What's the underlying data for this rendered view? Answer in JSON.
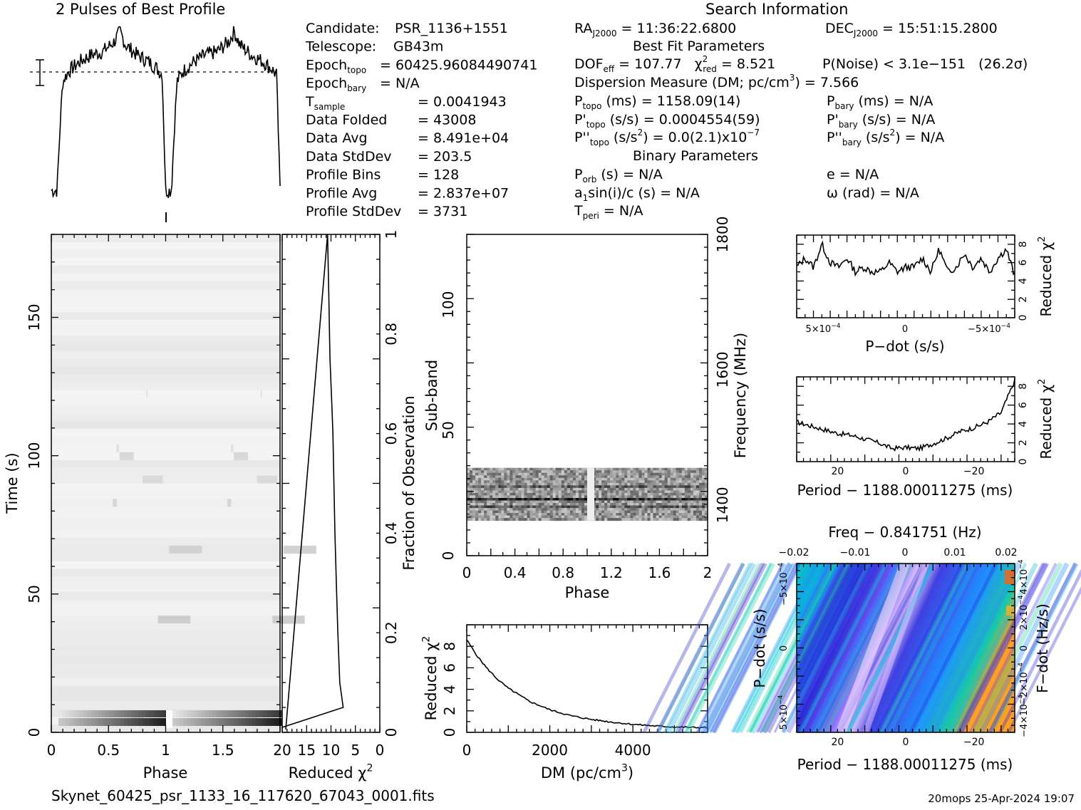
{
  "profile": {
    "title": "2 Pulses of Best Profile"
  },
  "info": {
    "search_title": "Search Information",
    "left": [
      {
        "label": "Candidate:",
        "sub": "",
        "value": "PSR_1136+1551"
      },
      {
        "label": "Telescope:",
        "sub": "",
        "value": "GB43m"
      },
      {
        "label": "Epoch",
        "sub": "topo",
        "value": "= 60425.96084490741"
      },
      {
        "label": "Epoch",
        "sub": "bary",
        "value": "= N/A"
      },
      {
        "label": "T",
        "sub": "sample",
        "value": "= 0.0041943"
      },
      {
        "label": "Data Folded",
        "sub": "",
        "value": "= 43008"
      },
      {
        "label": "Data Avg",
        "sub": "",
        "value": "= 8.491e+04"
      },
      {
        "label": "Data StdDev",
        "sub": "",
        "value": "= 203.5"
      },
      {
        "label": "Profile Bins",
        "sub": "",
        "value": "= 128"
      },
      {
        "label": "Profile Avg",
        "sub": "",
        "value": "= 2.837e+07"
      },
      {
        "label": "Profile StdDev",
        "sub": "",
        "value": "= 3731"
      }
    ],
    "ra": "RA",
    "ra_sub": "J2000",
    "ra_value": "= 11:36:22.6800",
    "dec": "DEC",
    "dec_sub": "J2000",
    "dec_value": "= 15:51:15.2800",
    "best_fit_title": "Best Fit Parameters",
    "dof": "DOF",
    "dof_sub": "eff",
    "dof_value": "= 107.77",
    "chi": "χ",
    "chi_sup": "2",
    "chi_sub": "red",
    "chi_value": "= 8.521",
    "pnoise": "P(Noise) < 3.1e−151",
    "sigma": "(26.2σ)",
    "dm_line": "Dispersion Measure (DM; pc/cm",
    "dm_sup": "3",
    "dm_value": ") = 7.566",
    "p_topo": "P",
    "p_topo_sub": "topo",
    "p_topo_value": "(ms) =  1158.09(14)",
    "p_bary": "P",
    "p_bary_sub": "bary",
    "p_bary_value": "(ms) = N/A",
    "pd_topo": "P'",
    "pd_topo_sub": "topo",
    "pd_topo_value": "(s/s) =  0.0004554(59)",
    "pd_bary": "P'",
    "pd_bary_sub": "bary",
    "pd_bary_value": "(s/s) = N/A",
    "pdd_topo": "P''",
    "pdd_topo_sub": "topo",
    "pdd_topo_value": "(s/s",
    "pdd_topo_sup": "2",
    "pdd_topo_value2": ") = 0.0(2.1)x10",
    "pdd_topo_exp": "−7",
    "pdd_bary": "P''",
    "pdd_bary_sub": "bary",
    "pdd_bary_value": "(s/s",
    "pdd_bary_sup": "2",
    "pdd_bary_value2": ") = N/A",
    "binary_title": "Binary Parameters",
    "porb": "P",
    "porb_sub": "orb",
    "porb_value": "(s) = N/A",
    "ecc": "e = N/A",
    "a1": "a",
    "a1_sub": "1",
    "a1_value": "sin(i)/c (s) = N/A",
    "omega": "ω (rad) = N/A",
    "tperi": "T",
    "tperi_sub": "peri",
    "tperi_value": "= N/A"
  },
  "footer": {
    "filename": "Skynet_60425_psr_1133_16_117620_67043_0001.fits",
    "stamp": "20mops 25-Apr-2024 19:07"
  },
  "colors": {
    "ink": "#000000",
    "heat_low": "#00c8c8",
    "heat_mid": "#2a2ad6",
    "heat_high": "#ffd0ff"
  },
  "chart_data": [
    {
      "id": "profile",
      "type": "line",
      "title": "2 Pulses of Best Profile",
      "x": [
        0.0,
        0.05,
        0.08,
        0.1,
        0.15,
        0.25,
        0.35,
        0.45,
        0.55,
        0.6,
        0.65,
        0.75,
        0.85,
        0.92,
        0.97,
        1.0,
        1.05,
        1.08,
        1.1,
        1.15,
        1.25,
        1.35,
        1.45,
        1.55,
        1.6,
        1.65,
        1.75,
        1.85,
        1.92,
        1.97,
        2.0
      ],
      "y": [
        0.02,
        0.02,
        0.45,
        0.68,
        0.74,
        0.8,
        0.84,
        0.86,
        0.92,
        0.98,
        0.9,
        0.84,
        0.8,
        0.76,
        0.72,
        0.02,
        0.02,
        0.45,
        0.68,
        0.74,
        0.8,
        0.84,
        0.86,
        0.92,
        0.98,
        0.9,
        0.84,
        0.8,
        0.76,
        0.72,
        0.02
      ]
    },
    {
      "id": "time_phase",
      "type": "heatmap",
      "xlabel": "Phase",
      "ylabel": "Time (s)",
      "xlim": [
        0,
        2
      ],
      "ylim": [
        0,
        180
      ],
      "xticks": [
        "0",
        "0.5",
        "1",
        "1.5"
      ],
      "yticks": [
        "0",
        "50",
        "100",
        "150"
      ]
    },
    {
      "id": "chi_vs_time",
      "type": "line",
      "xlabel": "Reduced χ",
      "xlabel_sup": "2",
      "ylabel": "Fraction of Observation",
      "xlim": [
        20,
        0
      ],
      "ylim": [
        0,
        1
      ],
      "xticks": [
        "20",
        "15",
        "10",
        "5",
        "0"
      ],
      "yticks": [
        "0",
        "0.2",
        "0.4",
        "0.6",
        "0.8",
        "1"
      ],
      "x": [
        20,
        7.5,
        8.2,
        8.6,
        8.9,
        9.2,
        9.4,
        9.6,
        9.8,
        10.0,
        10.2,
        10.3,
        10.4,
        10.5,
        10.6,
        10.7
      ],
      "y": [
        0.01,
        0.05,
        0.1,
        0.2,
        0.3,
        0.4,
        0.5,
        0.6,
        0.65,
        0.7,
        0.75,
        0.8,
        0.85,
        0.9,
        0.95,
        1.0
      ]
    },
    {
      "id": "subband",
      "type": "heatmap",
      "xlabel": "Phase",
      "ylabel": "Sub-band",
      "ylabel2": "Frequency (MHz)",
      "xlim": [
        0,
        2
      ],
      "ylim": [
        0,
        128
      ],
      "xticks": [
        "0",
        "0.4",
        "0.8",
        "1.2",
        "1.6",
        "2"
      ],
      "yticks": [
        "0",
        "50",
        "100"
      ],
      "y2ticks": [
        "1400",
        "1600",
        "1800"
      ]
    },
    {
      "id": "dm_curve",
      "type": "line",
      "xlabel": "DM (pc/cm",
      "xlabel_sup": "3",
      "xlabel_end": ")",
      "ylabel": "Reduced χ",
      "ylabel_sup": "2",
      "xlim": [
        0,
        5800
      ],
      "ylim": [
        0,
        10
      ],
      "xticks": [
        "0",
        "2000",
        "4000"
      ],
      "yticks": [
        "0",
        "2",
        "4",
        "6",
        "8"
      ],
      "x": [
        0,
        250,
        500,
        750,
        1000,
        1500,
        2000,
        2500,
        3000,
        3500,
        4000,
        4500,
        5000,
        5500,
        5800
      ],
      "y": [
        8.6,
        7.1,
        5.9,
        4.9,
        4.1,
        2.9,
        2.1,
        1.55,
        1.2,
        0.95,
        0.75,
        0.6,
        0.5,
        0.45,
        0.45
      ]
    },
    {
      "id": "pdot_curve",
      "type": "line",
      "xlabel": "P−dot (s/s)",
      "ylabel": "Reduced χ",
      "ylabel_sup": "2",
      "xlim": [
        0.00065,
        -0.00065
      ],
      "ylim": [
        0,
        9
      ],
      "xticks": [
        "5×10",
        "0",
        "−5×10"
      ],
      "xtick_exp": "−4",
      "yticks": [
        "0",
        "2",
        "4",
        "6",
        "8"
      ],
      "x": [
        0.00065,
        0.0006,
        0.00055,
        0.0005,
        0.00045,
        0.0004,
        0.00035,
        0.0003,
        0.00025,
        0.0002,
        0.00015,
        0.0001,
        5e-05,
        0,
        -5e-05,
        -0.0001,
        -0.00015,
        -0.0002,
        -0.00025,
        -0.0003,
        -0.00035,
        -0.0004,
        -0.00045,
        -0.0005,
        -0.00055,
        -0.0006,
        -0.00065
      ],
      "y": [
        5.5,
        6.5,
        5.5,
        8.0,
        6.0,
        5.5,
        6.5,
        5.0,
        5.5,
        5.0,
        5.0,
        6.0,
        5.0,
        5.5,
        5.5,
        6.5,
        5.0,
        7.5,
        5.0,
        5.5,
        7.0,
        5.5,
        6.5,
        5.0,
        6.5,
        7.5,
        4.5
      ]
    },
    {
      "id": "period_curve",
      "type": "line",
      "xlabel": "Period − 1188.00011275 (ms)",
      "ylabel": "Reduced χ",
      "ylabel_sup": "2",
      "xlim": [
        32,
        -32
      ],
      "ylim": [
        0,
        9
      ],
      "xticks": [
        "20",
        "0",
        "−20"
      ],
      "yticks": [
        "0",
        "2",
        "4",
        "6",
        "8"
      ],
      "x": [
        32,
        28,
        24,
        20,
        16,
        12,
        8,
        4,
        0,
        -4,
        -8,
        -12,
        -16,
        -20,
        -24,
        -28,
        -32
      ],
      "y": [
        4.2,
        3.8,
        3.4,
        3.0,
        2.8,
        2.4,
        2.0,
        1.4,
        1.5,
        1.4,
        1.9,
        2.5,
        3.2,
        3.6,
        4.2,
        5.2,
        8.6
      ]
    },
    {
      "id": "ppdot_plane",
      "type": "heatmap",
      "title": "Freq − 0.841751 (Hz)",
      "xlabel": "Period − 1188.00011275 (ms)",
      "ylabel": "P−dot (s/s)",
      "ylabel2": "F−dot (Hz/s)",
      "xticks": [
        "20",
        "0",
        "−20"
      ],
      "topticks": [
        "−0.02",
        "−0.01",
        "0",
        "0.01",
        "0.02"
      ],
      "yticks": [
        "5×10",
        "0",
        "−5×10"
      ],
      "ytick_exp": "−4",
      "y2ticks": [
        "−4×10",
        "−2×10",
        "0",
        "2×10",
        "4×10"
      ],
      "y2tick_exp": "−4"
    }
  ]
}
